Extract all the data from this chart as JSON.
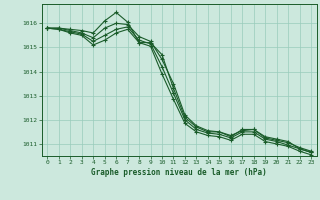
{
  "background_color": "#cce8dd",
  "grid_color": "#99ccbb",
  "line_color": "#1a5c2a",
  "marker_color": "#1a5c2a",
  "title": "Graphe pression niveau de la mer (hPa)",
  "xlim": [
    -0.5,
    23.5
  ],
  "ylim": [
    1010.5,
    1016.8
  ],
  "yticks": [
    1011,
    1012,
    1013,
    1014,
    1015,
    1016
  ],
  "xticks": [
    0,
    1,
    2,
    3,
    4,
    5,
    6,
    7,
    8,
    9,
    10,
    11,
    12,
    13,
    14,
    15,
    16,
    17,
    18,
    19,
    20,
    21,
    22,
    23
  ],
  "series": [
    [
      1015.8,
      1015.8,
      1015.75,
      1015.7,
      1015.6,
      1016.1,
      1016.45,
      1016.05,
      1015.2,
      1015.2,
      1014.7,
      1013.3,
      1012.1,
      1011.7,
      1011.5,
      1011.5,
      1011.3,
      1011.6,
      1011.6,
      1011.3,
      1011.2,
      1011.1,
      1010.8,
      1010.65
    ],
    [
      1015.8,
      1015.8,
      1015.7,
      1015.6,
      1015.4,
      1015.8,
      1016.0,
      1015.95,
      1015.45,
      1015.25,
      1014.5,
      1013.5,
      1012.2,
      1011.75,
      1011.55,
      1011.5,
      1011.35,
      1011.55,
      1011.6,
      1011.25,
      1011.15,
      1011.05,
      1010.85,
      1010.7
    ],
    [
      1015.8,
      1015.75,
      1015.65,
      1015.55,
      1015.25,
      1015.5,
      1015.75,
      1015.85,
      1015.3,
      1015.15,
      1014.2,
      1013.1,
      1012.0,
      1011.6,
      1011.45,
      1011.4,
      1011.25,
      1011.5,
      1011.5,
      1011.2,
      1011.1,
      1010.95,
      1010.8,
      1010.65
    ],
    [
      1015.8,
      1015.75,
      1015.6,
      1015.5,
      1015.1,
      1015.3,
      1015.6,
      1015.75,
      1015.2,
      1015.05,
      1013.9,
      1012.85,
      1011.85,
      1011.5,
      1011.35,
      1011.3,
      1011.15,
      1011.4,
      1011.4,
      1011.1,
      1011.0,
      1010.9,
      1010.7,
      1010.55
    ]
  ]
}
